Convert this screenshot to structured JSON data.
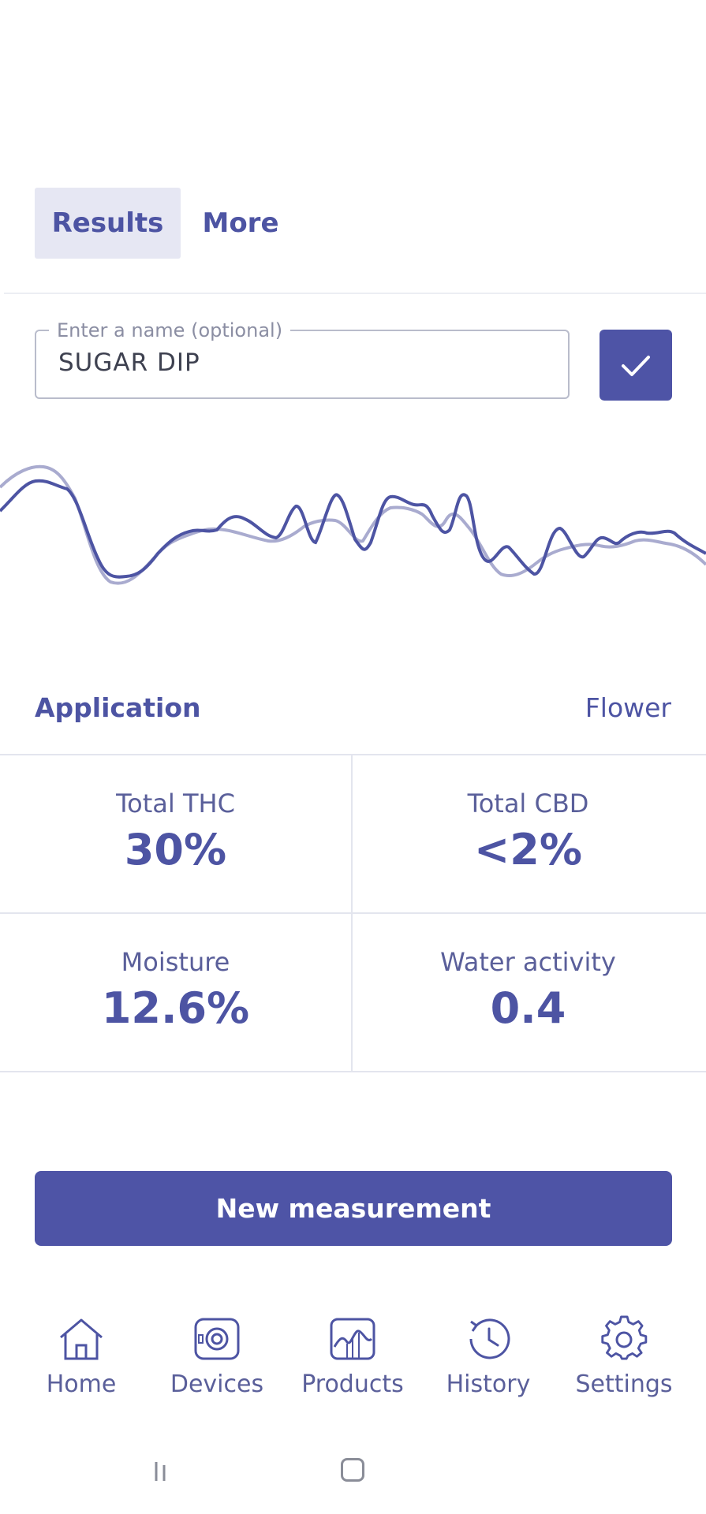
{
  "tabs": [
    {
      "label": "Results",
      "active": true
    },
    {
      "label": "More",
      "active": false
    }
  ],
  "name_field": {
    "legend": "Enter a name (optional)",
    "value": "SUGAR DIP",
    "confirm_icon": "check-icon"
  },
  "spectrum": {
    "type": "line",
    "series_colors": [
      "#4d54a3",
      "#a9abcf"
    ]
  },
  "application": {
    "label": "Application",
    "value": "Flower"
  },
  "metrics": [
    {
      "label": "Total THC",
      "value": "30%"
    },
    {
      "label": "Total CBD",
      "value": "<2%"
    },
    {
      "label": "Moisture",
      "value": "12.6%"
    },
    {
      "label": "Water activity",
      "value": "0.4"
    }
  ],
  "primary_button": {
    "label": "New measurement"
  },
  "bottom_nav": [
    {
      "label": "Home",
      "icon": "home-icon"
    },
    {
      "label": "Devices",
      "icon": "device-icon"
    },
    {
      "label": "Products",
      "icon": "products-icon"
    },
    {
      "label": "History",
      "icon": "history-icon"
    },
    {
      "label": "Settings",
      "icon": "gear-icon"
    }
  ],
  "colors": {
    "accent": "#4e54a6",
    "accent_light": "#e6e7f3",
    "divider": "#e3e5ee"
  }
}
